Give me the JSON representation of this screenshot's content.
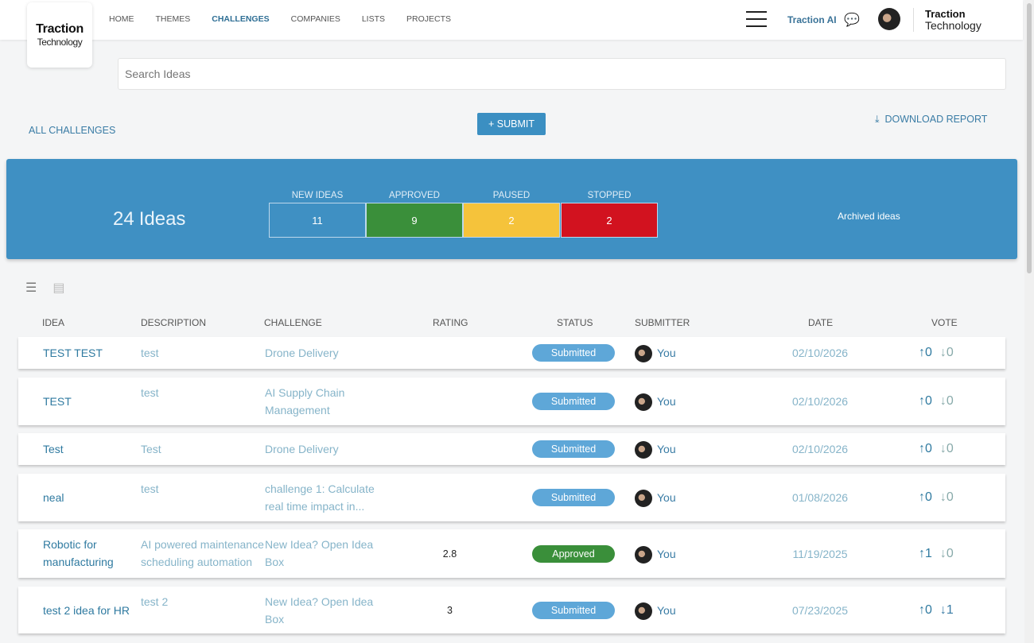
{
  "nav": {
    "logo_title": "Traction",
    "logo_sub": "Technology",
    "items": [
      "HOME",
      "THEMES",
      "CHALLENGES",
      "COMPANIES",
      "LISTS",
      "PROJECTS"
    ],
    "active": "CHALLENGES",
    "traction_ai": "Traction AI",
    "brand_title": "Traction",
    "brand_sub": "Technology"
  },
  "search": {
    "placeholder": "Search Ideas"
  },
  "actions": {
    "all_challenges": "ALL CHALLENGES",
    "submit": "+ SUBMIT",
    "download": "DOWNLOAD REPORT"
  },
  "summary": {
    "count": "24",
    "count_label": "Ideas",
    "archived": "Archived ideas",
    "stats": [
      {
        "label": "NEW IDEAS",
        "value": "11",
        "color": "#3f90c3"
      },
      {
        "label": "APPROVED",
        "value": "9",
        "color": "#3a8f3a"
      },
      {
        "label": "PAUSED",
        "value": "2",
        "color": "#f5c33b"
      },
      {
        "label": "STOPPED",
        "value": "2",
        "color": "#d2121f"
      }
    ]
  },
  "table": {
    "headers": [
      "IDEA",
      "DESCRIPTION",
      "CHALLENGE",
      "RATING",
      "STATUS",
      "SUBMITTER",
      "DATE",
      "VOTE"
    ],
    "rows": [
      {
        "idea": "TEST TEST",
        "description": "test",
        "challenge": "Drone Delivery",
        "rating": "",
        "status": "Submitted",
        "submitter": "You",
        "date": "02/10/2026",
        "up": "0",
        "down": "0"
      },
      {
        "idea": "TEST",
        "description": "test",
        "challenge": "AI Supply Chain Management",
        "rating": "",
        "status": "Submitted",
        "submitter": "You",
        "date": "02/10/2026",
        "up": "0",
        "down": "0"
      },
      {
        "idea": "Test",
        "description": "Test",
        "challenge": "Drone Delivery",
        "rating": "",
        "status": "Submitted",
        "submitter": "You",
        "date": "02/10/2026",
        "up": "0",
        "down": "0"
      },
      {
        "idea": "neal",
        "description": "test",
        "challenge": "challenge 1: Calculate real time impact in...",
        "rating": "",
        "status": "Submitted",
        "submitter": "You",
        "date": "01/08/2026",
        "up": "0",
        "down": "0"
      },
      {
        "idea": "Robotic for manufacturing",
        "description": "AI powered maintenance scheduling automation",
        "challenge": "New Idea? Open Idea Box",
        "rating": "2.8",
        "status": "Approved",
        "submitter": "You",
        "date": "11/19/2025",
        "up": "1",
        "down": "0"
      },
      {
        "idea": "test 2 idea for HR",
        "description": "test 2",
        "challenge": "New Idea? Open Idea Box",
        "rating": "3",
        "status": "Submitted",
        "submitter": "You",
        "date": "07/23/2025",
        "up": "0",
        "down": "1"
      }
    ]
  },
  "colors": {
    "submitted": "#5ea7d8",
    "approved": "#3a8f3a",
    "link": "#3a7ca5"
  }
}
